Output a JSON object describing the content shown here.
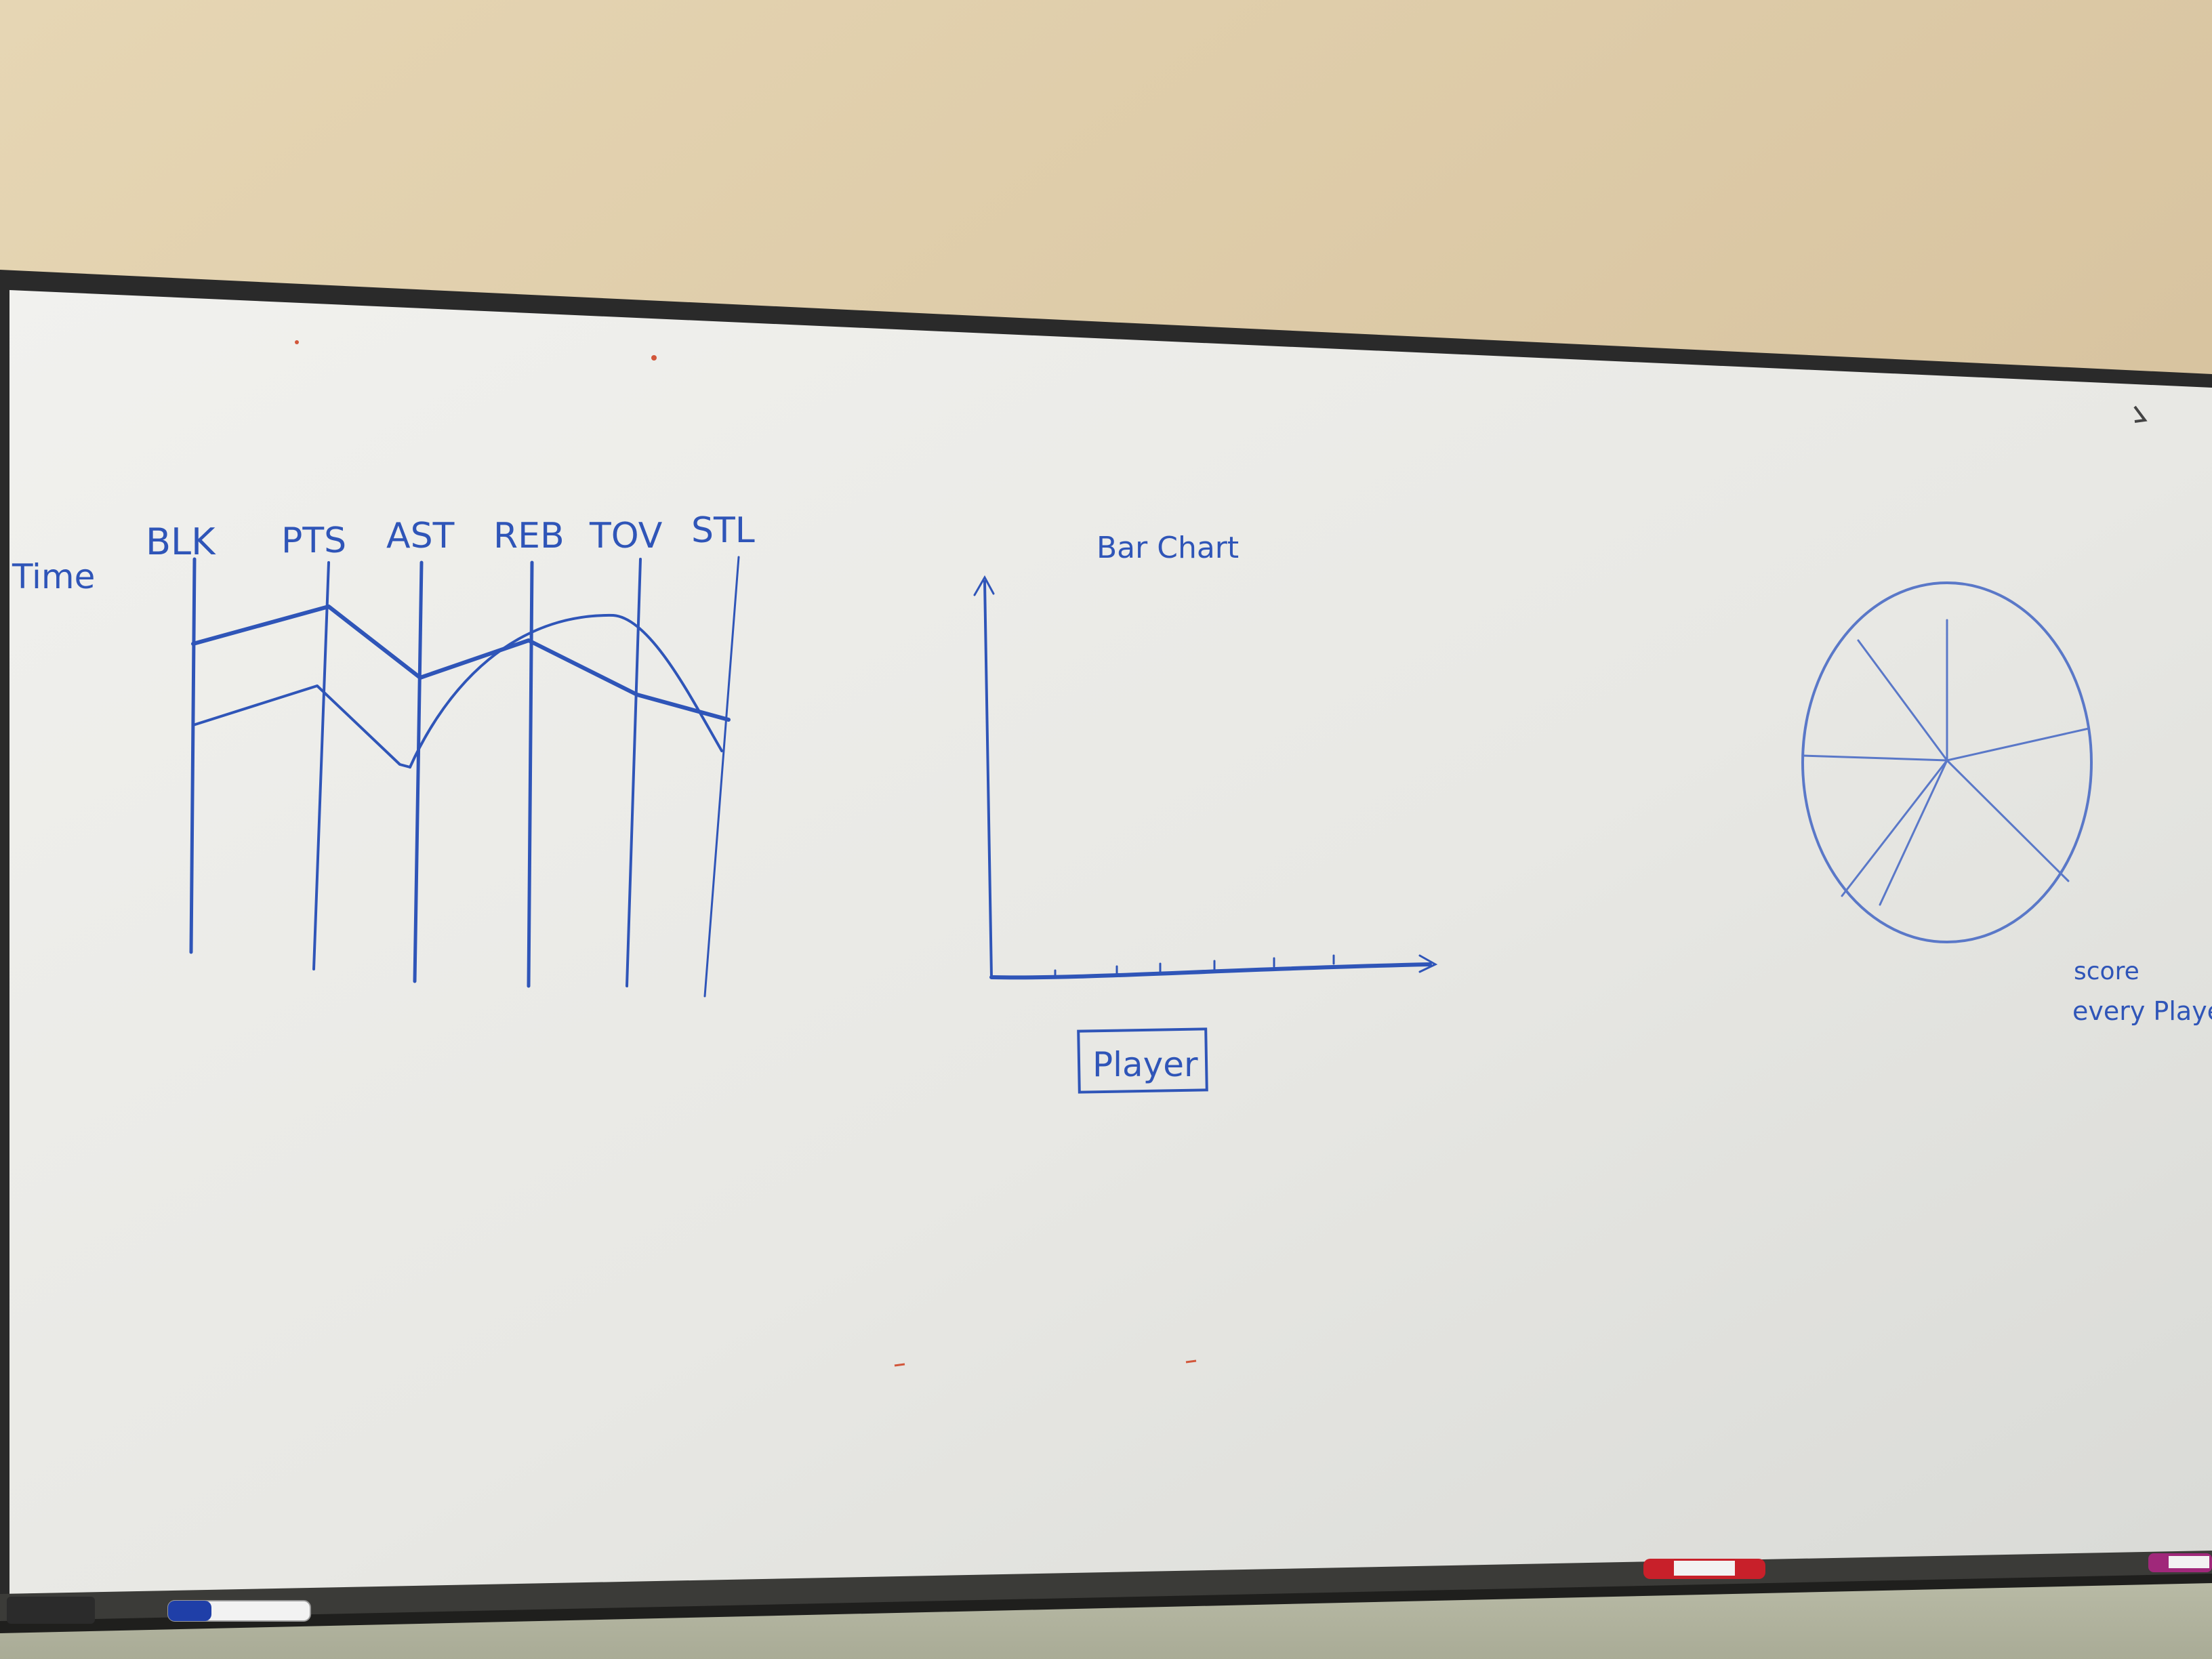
{
  "scene": {
    "wall_color": "#d9c6a2",
    "board_color": "#e9e9e6",
    "ink_color": "#2f55b8",
    "frame_color": "#2a2a2a"
  },
  "parallel_coords": {
    "side_label": "Time",
    "axes": [
      "BLK",
      "PTS",
      "AST",
      "REB",
      "TOV",
      "STL"
    ]
  },
  "bar_chart": {
    "title": "Bar Chart",
    "x_label": "Player"
  },
  "pie_chart": {
    "caption_line1": "score",
    "caption_line2": "every Player",
    "slices": 7
  },
  "markers": [
    {
      "color": "#1f3fa8",
      "icon": "blue-marker-icon"
    },
    {
      "color": "#c8202a",
      "icon": "red-marker-icon"
    },
    {
      "color": "#a0287a",
      "icon": "purple-marker-icon"
    }
  ]
}
